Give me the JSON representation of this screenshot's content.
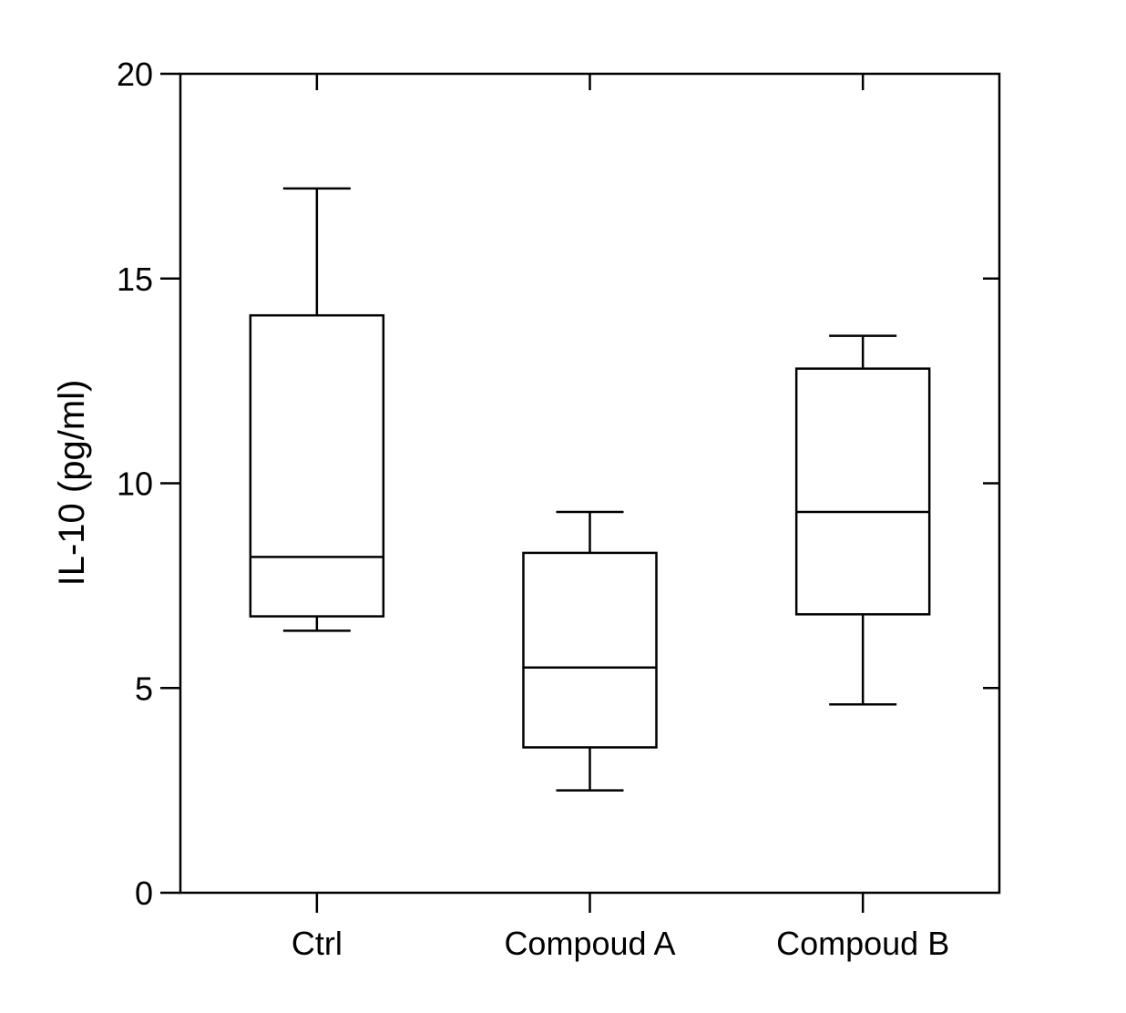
{
  "chart_data": {
    "type": "boxplot",
    "ylabel": "IL-10 (pg/ml)",
    "xlabel": "",
    "ylim": [
      0,
      20
    ],
    "yticks": [
      0,
      5,
      10,
      15,
      20
    ],
    "categories": [
      "Ctrl",
      "Compoud A",
      "Compoud B"
    ],
    "boxes": [
      {
        "category": "Ctrl",
        "min": 6.4,
        "q1": 6.75,
        "median": 8.2,
        "q3": 14.1,
        "max": 17.2
      },
      {
        "category": "Compoud A",
        "min": 2.5,
        "q1": 3.55,
        "median": 5.5,
        "q3": 8.3,
        "max": 9.3
      },
      {
        "category": "Compoud B",
        "min": 4.6,
        "q1": 6.8,
        "median": 9.3,
        "q3": 12.8,
        "max": 13.6
      }
    ],
    "grid": false,
    "legend": "none",
    "colors": {
      "stroke": "#000000",
      "fill": "#ffffff"
    }
  }
}
